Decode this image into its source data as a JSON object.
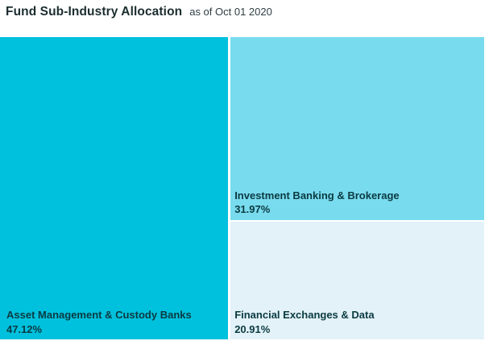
{
  "header": {
    "title": "Fund Sub-Industry Allocation",
    "as_of": "as of Oct 01 2020"
  },
  "chart_data": {
    "type": "treemap",
    "title": "Fund Sub-Industry Allocation",
    "as_of_date": "Oct 01 2020",
    "legend_position": "none",
    "segments": [
      {
        "name": "Asset Management & Custody Banks",
        "value_pct": 47.12,
        "label_pct": "47.12%",
        "color": "#00c1dd",
        "position": "left-full-height"
      },
      {
        "name": "Investment Banking & Brokerage",
        "value_pct": 31.97,
        "label_pct": "31.97%",
        "color": "#79dbee",
        "position": "right-top"
      },
      {
        "name": "Financial Exchanges & Data",
        "value_pct": 20.91,
        "label_pct": "20.91%",
        "color": "#e3f2f8",
        "position": "right-bottom"
      }
    ],
    "colors": {
      "label_text": "#0a3a41",
      "title_text": "#1c2d2f",
      "background": "#ffffff"
    }
  }
}
